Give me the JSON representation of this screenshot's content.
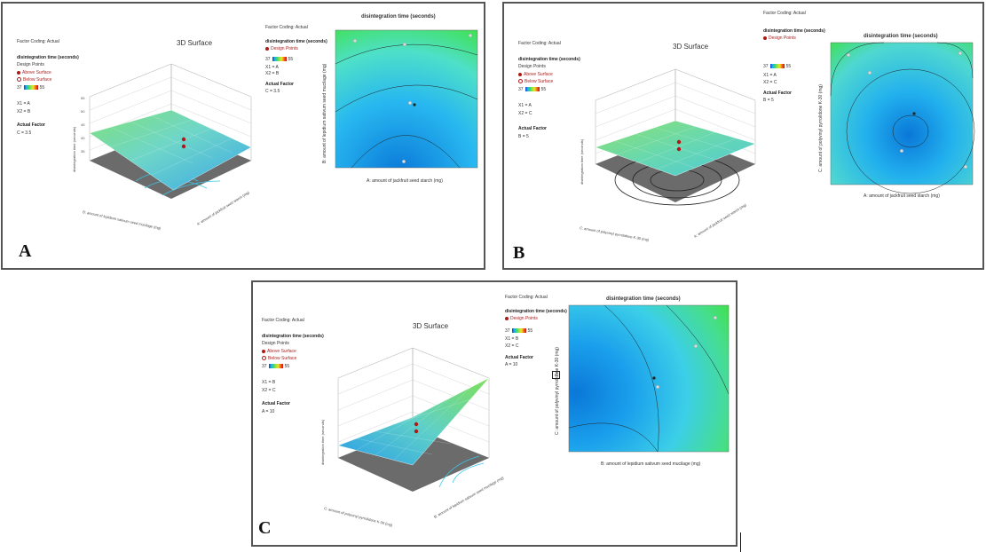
{
  "panels": [
    {
      "id": "A",
      "letter": "A",
      "factor_coding": "Factor Coding: Actual",
      "surface_title": "3D Surface",
      "response_label": "disintegration time (seconds)",
      "design_points_label": "Design Points",
      "above_label": "Above Surface",
      "below_label": "Below Surface",
      "range_min": "37",
      "range_max": "55",
      "x1_label": "X1 = A",
      "x2_label": "X2 = B",
      "actual_factor_label": "Actual Factor",
      "actual_factor_value": "C = 3.5",
      "z_axis_label": "disintegration time (seconds)",
      "x_axis_label": "A: amount of jackfruit seed starch (mg)",
      "y_axis_label": "B: amount of lepidium sativum seed mucilage (mg)",
      "contour_title": "disintegration time (seconds)",
      "contour_factor_coding": "Factor Coding: Actual",
      "contour_response_label": "disintegration time (seconds)",
      "contour_design_points": "Design Points",
      "contour_range_min": "37",
      "contour_range_max": "55",
      "contour_x1": "X1 = A",
      "contour_x2": "X2 = B",
      "contour_actual_factor": "Actual Factor",
      "contour_actual_value": "C = 3.5",
      "contour_xlabel": "A: amount of jackfruit seed starch (mg)",
      "contour_ylabel": "B: amount of lepidium sativum seed mucilage (mg)"
    },
    {
      "id": "B",
      "letter": "B",
      "factor_coding": "Factor Coding: Actual",
      "surface_title": "3D Surface",
      "response_label": "disintegration time (seconds)",
      "design_points_label": "Design Points",
      "above_label": "Above Surface",
      "below_label": "Below Surface",
      "range_min": "37",
      "range_max": "55",
      "x1_label": "X1 = A",
      "x2_label": "X2 = C",
      "actual_factor_label": "Actual Factor",
      "actual_factor_value": "B = 5",
      "z_axis_label": "disintegration time (seconds)",
      "x_axis_label": "A: amount of jackfruit seed starch (mg)",
      "y_axis_label": "C: amount of polyvinyl pyrrolidone K-30 (mg)",
      "contour_title": "disintegration time (seconds)",
      "contour_factor_coding": "Factor Coding: Actual",
      "contour_response_label": "disintegration time (seconds)",
      "contour_design_points": "Design Points",
      "contour_range_min": "37",
      "contour_range_max": "55",
      "contour_x1": "X1 = A",
      "contour_x2": "X2 = C",
      "contour_actual_factor": "Actual Factor",
      "contour_actual_value": "B = 5",
      "contour_xlabel": "A: amount of jackfruit seed starch (mg)",
      "contour_ylabel": "C: amount of polyvinyl pyrrolidone K-30 (mg)"
    },
    {
      "id": "C",
      "letter": "C",
      "factor_coding": "Factor Coding: Actual",
      "surface_title": "3D Surface",
      "response_label": "disintegration time (seconds)",
      "design_points_label": "Design Points",
      "above_label": "Above Surface",
      "below_label": "Below Surface",
      "range_min": "37",
      "range_max": "55",
      "x1_label": "X1 = B",
      "x2_label": "X2 = C",
      "actual_factor_label": "Actual Factor",
      "actual_factor_value": "A = 10",
      "z_axis_label": "disintegration time (seconds)",
      "x_axis_label": "B: amount of lepidium sativum seed mucilage (mg)",
      "y_axis_label": "C: amount of polyvinyl pyrrolidone K-30 (mg)",
      "contour_title": "disintegration time (seconds)",
      "contour_factor_coding": "Factor Coding: Actual",
      "contour_response_label": "disintegration time (seconds)",
      "contour_design_points": "Design Points",
      "contour_range_min": "37",
      "contour_range_max": "55",
      "contour_x1": "X1 = B",
      "contour_x2": "X2 = C",
      "contour_actual_factor": "Actual Factor",
      "contour_actual_value": "A = 10",
      "contour_xlabel": "B: amount of lepidium sativum seed mucilage (mg)",
      "contour_ylabel": "C: amount of polyvinyl pyrrolidone K-30 (mg)"
    }
  ],
  "chart_data": [
    {
      "type": "heatmap",
      "title": "disintegration time (seconds)",
      "xlabel": "A: amount of jackfruit seed starch (mg)",
      "ylabel": "B: amount of lepidium sativum seed mucilage (mg)",
      "legend_range": [
        37,
        55
      ],
      "gradient_direction": "low at bottom-center, high at top-right",
      "design_points": 5
    },
    {
      "type": "heatmap",
      "title": "disintegration time (seconds)",
      "xlabel": "A: amount of jackfruit seed starch (mg)",
      "ylabel": "C: amount of polyvinyl pyrrolidone K-30 (mg)",
      "legend_range": [
        37,
        55
      ],
      "gradient_direction": "minimum at center, high at corners",
      "design_points": 5
    },
    {
      "type": "heatmap",
      "title": "disintegration time (seconds)",
      "xlabel": "B: amount of lepidium sativum seed mucilage (mg)",
      "ylabel": "C: amount of polyvinyl pyrrolidone K-30 (mg)",
      "legend_range": [
        37,
        55
      ],
      "gradient_direction": "low at left, high at right",
      "design_points": 4
    }
  ],
  "colors": {
    "low": "#0a8de0",
    "mid": "#3fd0f0",
    "high": "#3fe04a",
    "design_point": "#b01818"
  }
}
